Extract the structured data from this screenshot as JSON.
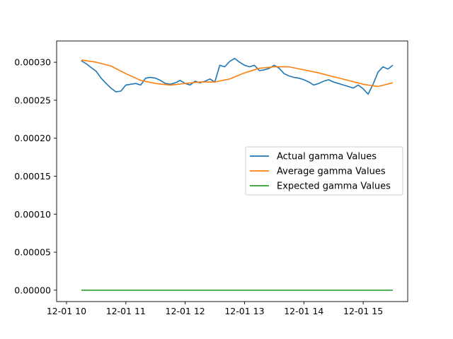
{
  "chart_data": {
    "type": "line",
    "title": "",
    "xlabel": "",
    "ylabel": "",
    "x_axis": {
      "type": "time",
      "range": [
        "12-01 09:50",
        "12-01 15:45"
      ],
      "ticks": [
        {
          "value": "12-01 10:00",
          "label": "12-01 10"
        },
        {
          "value": "12-01 11:00",
          "label": "12-01 11"
        },
        {
          "value": "12-01 12:00",
          "label": "12-01 12"
        },
        {
          "value": "12-01 13:00",
          "label": "12-01 13"
        },
        {
          "value": "12-01 14:00",
          "label": "12-01 14"
        },
        {
          "value": "12-01 15:00",
          "label": "12-01 15"
        }
      ]
    },
    "y_axis": {
      "range": [
        -1.5e-05,
        0.000328
      ],
      "ticks": [
        {
          "value": 0,
          "label": "0.00000"
        },
        {
          "value": 5e-05,
          "label": "0.00005"
        },
        {
          "value": 0.0001,
          "label": "0.00010"
        },
        {
          "value": 0.00015,
          "label": "0.00015"
        },
        {
          "value": 0.0002,
          "label": "0.00020"
        },
        {
          "value": 0.00025,
          "label": "0.00025"
        },
        {
          "value": 0.0003,
          "label": "0.00030"
        }
      ]
    },
    "grid": false,
    "legend_position": "center-right",
    "series": [
      {
        "name": "Actual gamma Values",
        "color": "#1f77b4",
        "x": [
          "12-01 10:15",
          "12-01 10:20",
          "12-01 10:25",
          "12-01 10:30",
          "12-01 10:35",
          "12-01 10:40",
          "12-01 10:45",
          "12-01 10:50",
          "12-01 10:55",
          "12-01 11:00",
          "12-01 11:05",
          "12-01 11:10",
          "12-01 11:15",
          "12-01 11:20",
          "12-01 11:25",
          "12-01 11:30",
          "12-01 11:35",
          "12-01 11:40",
          "12-01 11:45",
          "12-01 11:50",
          "12-01 11:55",
          "12-01 12:00",
          "12-01 12:05",
          "12-01 12:10",
          "12-01 12:15",
          "12-01 12:20",
          "12-01 12:25",
          "12-01 12:30",
          "12-01 12:35",
          "12-01 12:40",
          "12-01 12:45",
          "12-01 12:50",
          "12-01 12:55",
          "12-01 13:00",
          "12-01 13:05",
          "12-01 13:10",
          "12-01 13:15",
          "12-01 13:20",
          "12-01 13:25",
          "12-01 13:30",
          "12-01 13:35",
          "12-01 13:40",
          "12-01 13:45",
          "12-01 13:50",
          "12-01 13:55",
          "12-01 14:00",
          "12-01 14:05",
          "12-01 14:10",
          "12-01 14:15",
          "12-01 14:20",
          "12-01 14:25",
          "12-01 14:30",
          "12-01 14:35",
          "12-01 14:40",
          "12-01 14:45",
          "12-01 14:50",
          "12-01 14:55",
          "12-01 15:00",
          "12-01 15:05",
          "12-01 15:10",
          "12-01 15:15",
          "12-01 15:20",
          "12-01 15:25",
          "12-01 15:30"
        ],
        "y": [
          0.000302,
          0.000298,
          0.000293,
          0.000288,
          0.000279,
          0.000272,
          0.000266,
          0.000261,
          0.000262,
          0.00027,
          0.000271,
          0.000272,
          0.00027,
          0.000279,
          0.00028,
          0.000279,
          0.000276,
          0.000272,
          0.000271,
          0.000273,
          0.000276,
          0.000272,
          0.00027,
          0.000275,
          0.000273,
          0.000275,
          0.000278,
          0.000274,
          0.000296,
          0.000294,
          0.000301,
          0.000305,
          0.0003,
          0.000296,
          0.000294,
          0.000296,
          0.000289,
          0.00029,
          0.000292,
          0.000296,
          0.000292,
          0.000285,
          0.000282,
          0.00028,
          0.000279,
          0.000277,
          0.000274,
          0.00027,
          0.000272,
          0.000275,
          0.000277,
          0.000274,
          0.000272,
          0.00027,
          0.000268,
          0.000266,
          0.00027,
          0.000265,
          0.000258,
          0.000271,
          0.000287,
          0.000294,
          0.000291,
          0.000296
        ]
      },
      {
        "name": "Average gamma Values",
        "color": "#ff7f0e",
        "x": [
          "12-01 10:15",
          "12-01 10:30",
          "12-01 10:45",
          "12-01 11:00",
          "12-01 11:15",
          "12-01 11:30",
          "12-01 11:45",
          "12-01 12:00",
          "12-01 12:15",
          "12-01 12:30",
          "12-01 12:45",
          "12-01 13:00",
          "12-01 13:15",
          "12-01 13:30",
          "12-01 13:45",
          "12-01 14:00",
          "12-01 14:15",
          "12-01 14:30",
          "12-01 14:45",
          "12-01 15:00",
          "12-01 15:15",
          "12-01 15:30"
        ],
        "y": [
          0.000303,
          0.0003,
          0.000295,
          0.000285,
          0.000276,
          0.000272,
          0.00027,
          0.000272,
          0.000274,
          0.000274,
          0.000278,
          0.000286,
          0.000292,
          0.000294,
          0.000294,
          0.00029,
          0.000286,
          0.000281,
          0.000276,
          0.000271,
          0.000268,
          0.000273
        ]
      },
      {
        "name": "Expected gamma Values",
        "color": "#2ca02c",
        "x": [
          "12-01 10:15",
          "12-01 15:30"
        ],
        "y": [
          0.0,
          0.0
        ]
      }
    ]
  }
}
